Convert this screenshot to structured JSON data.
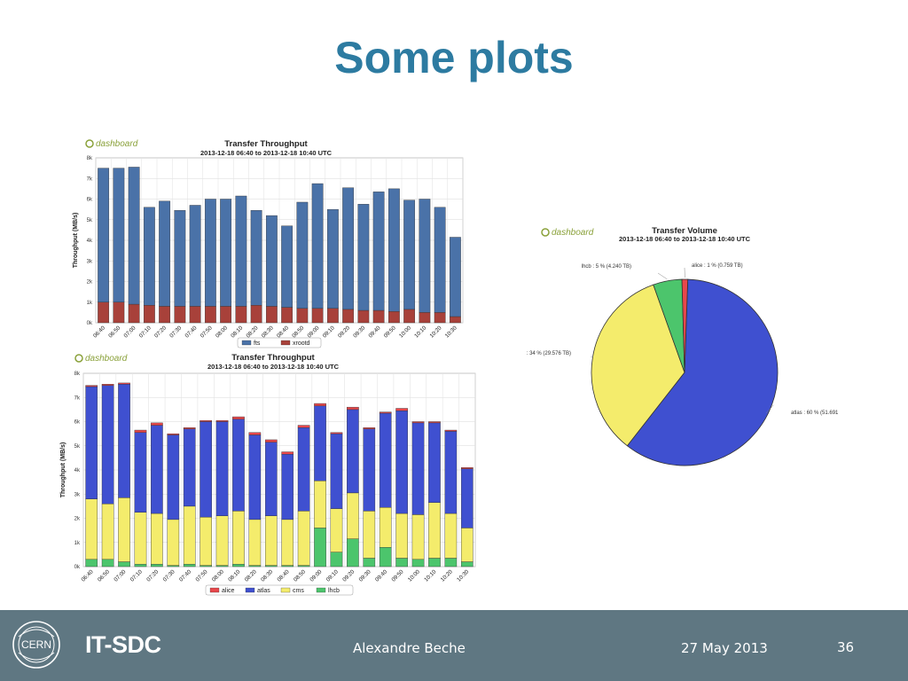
{
  "slide": {
    "title": "Some plots"
  },
  "footer": {
    "org": "IT-SDC",
    "author": "Alexandre Beche",
    "date": "27 May 2013",
    "page": "36",
    "logo_text": "CERN"
  },
  "colors": {
    "title": "#2d7ba1",
    "footer_bg": "#5f7782",
    "fts": "#4a72a8",
    "xrootd": "#a8413a",
    "alice": "#e8474b",
    "atlas": "#3f50d0",
    "cms": "#f4ec6c",
    "lhcb": "#4cc56c"
  },
  "chart_data": [
    {
      "type": "bar",
      "stacked": true,
      "logo": "dashboard",
      "title": "Transfer Throughput",
      "subtitle": "2013-12-18 06:40 to 2013-12-18 10:40 UTC",
      "ylabel": "Throughput (MB/s)",
      "xlabel": "",
      "ylim": [
        0,
        8000
      ],
      "yticks": [
        "0k",
        "1k",
        "2k",
        "3k",
        "4k",
        "5k",
        "6k",
        "7k",
        "8k"
      ],
      "grid": true,
      "legend_position": "bottom",
      "categories": [
        "06:40",
        "06:50",
        "07:00",
        "07:10",
        "07:20",
        "07:30",
        "07:40",
        "07:50",
        "08:00",
        "08:10",
        "08:20",
        "08:30",
        "08:40",
        "08:50",
        "09:00",
        "09:10",
        "09:20",
        "09:30",
        "09:40",
        "09:50",
        "10:00",
        "10:10",
        "10:20",
        "10:30"
      ],
      "series": [
        {
          "name": "xrootd",
          "values": [
            1000,
            1000,
            900,
            850,
            800,
            800,
            800,
            800,
            800,
            800,
            850,
            800,
            750,
            700,
            700,
            700,
            650,
            600,
            600,
            550,
            650,
            500,
            500,
            300
          ]
        },
        {
          "name": "fts",
          "values": [
            6500,
            6500,
            6650,
            4750,
            5100,
            4650,
            4900,
            5200,
            5200,
            5350,
            4600,
            4400,
            3950,
            5150,
            6050,
            4800,
            5900,
            5150,
            5750,
            5950,
            5300,
            5500,
            5100,
            3850
          ]
        }
      ]
    },
    {
      "type": "bar",
      "stacked": true,
      "logo": "dashboard",
      "title": "Transfer Throughput",
      "subtitle": "2013-12-18 06:40 to 2013-12-18 10:40 UTC",
      "ylabel": "Throughput (MB/s)",
      "xlabel": "",
      "ylim": [
        0,
        8000
      ],
      "yticks": [
        "0k",
        "1k",
        "2k",
        "3k",
        "4k",
        "5k",
        "6k",
        "7k",
        "8k"
      ],
      "grid": true,
      "legend_position": "bottom",
      "categories": [
        "06:40",
        "06:50",
        "07:00",
        "07:10",
        "07:20",
        "07:30",
        "07:40",
        "07:50",
        "08:00",
        "08:10",
        "08:20",
        "08:30",
        "08:40",
        "08:50",
        "09:00",
        "09:10",
        "09:20",
        "09:30",
        "09:40",
        "09:50",
        "10:00",
        "10:10",
        "10:20",
        "10:30"
      ],
      "series": [
        {
          "name": "lhcb",
          "values": [
            300,
            300,
            200,
            100,
            100,
            50,
            100,
            50,
            50,
            100,
            50,
            50,
            50,
            50,
            1600,
            600,
            1150,
            350,
            800,
            350,
            300,
            350,
            350,
            200
          ]
        },
        {
          "name": "cms",
          "values": [
            2500,
            2300,
            2650,
            2150,
            2100,
            1900,
            2400,
            2000,
            2050,
            2200,
            1900,
            2050,
            1900,
            2250,
            1950,
            1800,
            1900,
            1950,
            1650,
            1850,
            1850,
            2300,
            1850,
            1400
          ]
        },
        {
          "name": "atlas",
          "values": [
            4650,
            4900,
            4700,
            3300,
            3650,
            3500,
            3200,
            3950,
            3900,
            3800,
            3500,
            3050,
            2700,
            3450,
            3100,
            3100,
            3450,
            3400,
            3900,
            4250,
            3800,
            3300,
            3400,
            2450
          ]
        },
        {
          "name": "alice",
          "values": [
            50,
            50,
            50,
            100,
            100,
            50,
            50,
            50,
            50,
            100,
            100,
            100,
            100,
            100,
            100,
            50,
            100,
            50,
            50,
            100,
            50,
            50,
            50,
            50
          ]
        }
      ]
    },
    {
      "type": "pie",
      "logo": "dashboard",
      "title": "Transfer Volume",
      "subtitle": "2013-12-18 06:40 to 2013-12-18 10:40 UTC",
      "slices": [
        {
          "name": "atlas",
          "value": 60,
          "label": "atlas : 60 % (51.691"
        },
        {
          "name": "cms",
          "value": 34,
          "label": ": 34 % (29.576 TB)"
        },
        {
          "name": "lhcb",
          "value": 5,
          "label": "lhcb : 5 % (4.240 TB)"
        },
        {
          "name": "alice",
          "value": 1,
          "label": "alice : 1 % (0.759 TB)"
        }
      ]
    }
  ]
}
